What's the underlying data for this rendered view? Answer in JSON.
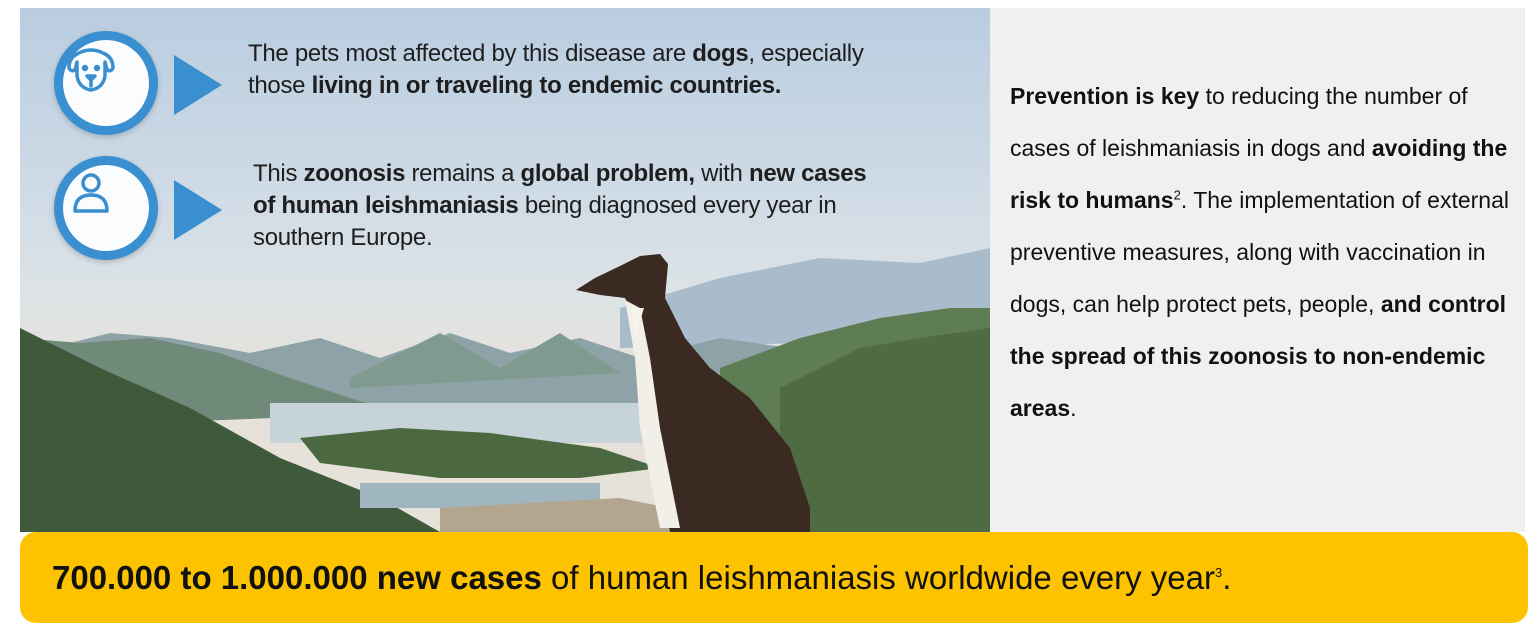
{
  "left_panel": {
    "items": [
      {
        "icon": "dog-icon",
        "parts": [
          "The pets most affected by this disease are ",
          "dogs",
          ", especially",
          "those ",
          "living in or traveling to endemic countries."
        ]
      },
      {
        "icon": "person-icon",
        "parts": [
          "This ",
          "zoonosis",
          " remains a ",
          "global problem,",
          " with ",
          "new cases",
          "of human leishmaniasis",
          " being diagnosed every year in",
          "southern Europe."
        ]
      }
    ]
  },
  "right_panel": {
    "parts": [
      "Prevention is key",
      " to reducing the number of cases of leishmaniasis in dogs and ",
      "avoiding the risk to humans",
      "2",
      ". The implementation of external preventive measures, along with vaccination in dogs, can help protect pets, people, ",
      "and control the spread of this zoonosis to non-endemic areas",
      "."
    ]
  },
  "banner": {
    "bold": "700.000 to 1.000.000 new cases",
    "text": " of human leishmaniasis worldwide every year",
    "sup": "3",
    "end": "."
  },
  "colors": {
    "accent_blue": "#3a8fd0",
    "banner_yellow": "#fdc300",
    "side_bg": "#f0f0f0"
  }
}
